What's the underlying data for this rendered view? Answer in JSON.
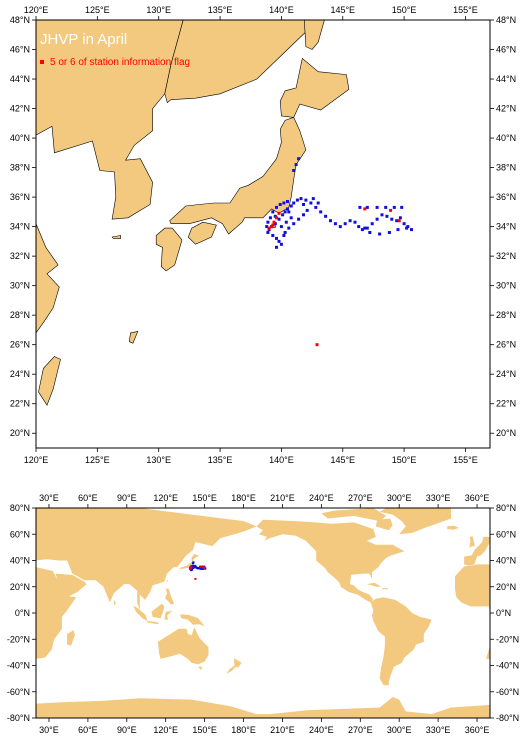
{
  "colors": {
    "land": "#f3c97f",
    "sea": "#ffffff",
    "frame": "#000000",
    "track": "#1010e0",
    "flag": "#ff0000"
  },
  "top_map": {
    "title": "JHVP in April",
    "legend_label": "5 or 6 of station information flag",
    "lon_range": [
      120,
      157
    ],
    "lat_range": [
      19,
      48
    ],
    "lon_ticks": [
      "120°E",
      "125°E",
      "130°E",
      "135°E",
      "140°E",
      "145°E",
      "150°E",
      "155°E"
    ],
    "lat_ticks": [
      "20°N",
      "22°N",
      "24°N",
      "26°N",
      "28°N",
      "30°N",
      "32°N",
      "34°N",
      "36°N",
      "38°N",
      "40°N",
      "42°N",
      "44°N",
      "46°N",
      "48°N"
    ]
  },
  "bottom_map": {
    "lon_range": [
      20,
      370
    ],
    "lat_range": [
      -80,
      80
    ],
    "lon_ticks": [
      "30°E",
      "60°E",
      "90°E",
      "120°E",
      "150°E",
      "180°E",
      "210°E",
      "240°E",
      "270°E",
      "300°E",
      "330°E",
      "360°E"
    ],
    "lat_ticks": [
      "-80°N",
      "-60°N",
      "-40°N",
      "-20°N",
      "0°N",
      "20°N",
      "40°N",
      "60°N",
      "80°N"
    ]
  },
  "chart_data": {
    "type": "scatter",
    "series": [
      {
        "name": "",
        "points": [
          [
            139.0,
            33.8
          ],
          [
            139.2,
            34.0
          ],
          [
            139.5,
            34.2
          ],
          [
            139.8,
            34.5
          ],
          [
            140.1,
            34.8
          ],
          [
            140.3,
            35.0
          ],
          [
            140.5,
            35.2
          ],
          [
            140.8,
            35.4
          ],
          [
            141.0,
            35.6
          ],
          [
            141.3,
            35.8
          ],
          [
            141.6,
            35.9
          ],
          [
            142.0,
            35.8
          ],
          [
            142.4,
            35.6
          ],
          [
            142.8,
            35.3
          ],
          [
            143.2,
            35.0
          ],
          [
            143.6,
            34.7
          ],
          [
            144.0,
            34.4
          ],
          [
            144.4,
            34.2
          ],
          [
            144.8,
            34.0
          ],
          [
            145.2,
            34.2
          ],
          [
            145.6,
            34.4
          ],
          [
            146.0,
            34.3
          ],
          [
            146.3,
            34.0
          ],
          [
            146.6,
            33.8
          ],
          [
            147.0,
            33.9
          ],
          [
            147.4,
            34.2
          ],
          [
            147.8,
            34.5
          ],
          [
            148.2,
            34.8
          ],
          [
            148.6,
            34.7
          ],
          [
            149.0,
            34.5
          ],
          [
            149.4,
            34.4
          ],
          [
            149.7,
            34.6
          ],
          [
            150.0,
            34.2
          ],
          [
            150.3,
            34.0
          ],
          [
            150.6,
            33.8
          ],
          [
            149.8,
            35.3
          ],
          [
            149.2,
            35.3
          ],
          [
            148.5,
            35.3
          ],
          [
            147.8,
            35.3
          ],
          [
            147.0,
            35.3
          ],
          [
            146.4,
            35.3
          ],
          [
            146.8,
            33.9
          ],
          [
            147.2,
            33.6
          ],
          [
            148.0,
            33.5
          ],
          [
            148.8,
            33.6
          ],
          [
            149.5,
            33.8
          ],
          [
            150.2,
            33.9
          ],
          [
            139.1,
            34.6
          ],
          [
            139.3,
            35.0
          ],
          [
            139.6,
            35.3
          ],
          [
            139.9,
            35.5
          ],
          [
            140.2,
            35.6
          ],
          [
            140.5,
            35.7
          ],
          [
            138.8,
            34.0
          ],
          [
            138.9,
            33.6
          ],
          [
            139.3,
            33.4
          ],
          [
            139.6,
            33.2
          ],
          [
            139.8,
            33.0
          ],
          [
            140.0,
            32.8
          ],
          [
            140.2,
            33.4
          ],
          [
            140.6,
            33.9
          ],
          [
            141.0,
            34.2
          ],
          [
            141.4,
            34.5
          ],
          [
            141.8,
            34.8
          ],
          [
            142.1,
            35.1
          ],
          [
            140.8,
            34.6
          ],
          [
            140.4,
            34.3
          ],
          [
            141.0,
            37.8
          ],
          [
            141.2,
            38.2
          ],
          [
            141.4,
            38.6
          ],
          [
            139.6,
            32.6
          ],
          [
            140.6,
            35.0
          ],
          [
            141.8,
            35.5
          ],
          [
            142.6,
            35.9
          ],
          [
            143.0,
            35.6
          ],
          [
            138.9,
            34.3
          ],
          [
            139.5,
            34.7
          ],
          [
            140.0,
            34.0
          ],
          [
            140.3,
            33.6
          ]
        ]
      },
      {
        "name": "5 or 6 of station information flag",
        "points": [
          [
            139.2,
            34.0
          ],
          [
            139.4,
            34.3
          ],
          [
            139.6,
            34.6
          ],
          [
            139.8,
            34.9
          ],
          [
            139.0,
            33.9
          ],
          [
            139.3,
            34.1
          ],
          [
            146.8,
            35.2
          ],
          [
            148.9,
            35.1
          ],
          [
            149.6,
            34.4
          ],
          [
            142.9,
            26.0
          ]
        ]
      }
    ]
  }
}
